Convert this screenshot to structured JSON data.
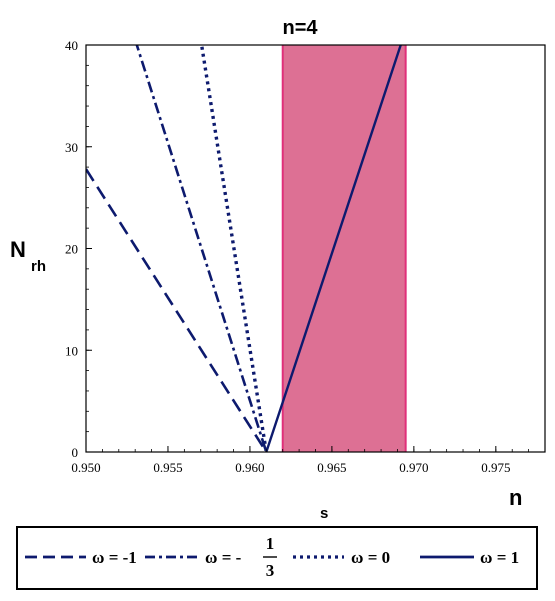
{
  "chart_data": {
    "type": "line",
    "title": "n=4",
    "xlabel": {
      "main": "n",
      "sub": "s"
    },
    "ylabel": {
      "main": "N",
      "sub": "rh"
    },
    "xlim": [
      0.95,
      0.978
    ],
    "ylim": [
      0,
      40
    ],
    "xticks": [
      "0.950",
      "0.955",
      "0.960",
      "0.965",
      "0.970",
      "0.975"
    ],
    "yticks": [
      "0",
      "10",
      "20",
      "30",
      "40"
    ],
    "grid": false,
    "legend_position": "bottom",
    "shaded_band": {
      "x": [
        0.962,
        0.9695
      ],
      "fill": "#dd7094",
      "edge": "#e0307a"
    },
    "line_color": "#0d1a6e",
    "series": [
      {
        "name": "ω = -1",
        "style": "dashed",
        "points": [
          [
            0.95,
            27.8
          ],
          [
            0.961,
            0
          ]
        ]
      },
      {
        "name": "ω = -1/3",
        "style": "dashdot",
        "points": [
          [
            0.953,
            40.5
          ],
          [
            0.961,
            0
          ]
        ]
      },
      {
        "name": "ω = 0",
        "style": "dotted",
        "points": [
          [
            0.957,
            40.5
          ],
          [
            0.961,
            0
          ]
        ]
      },
      {
        "name": "ω = 1",
        "style": "solid",
        "points": [
          [
            0.961,
            0
          ],
          [
            0.9693,
            40.5
          ]
        ]
      }
    ]
  },
  "legend": [
    {
      "symbol": "ω",
      "eq": "= -1"
    },
    {
      "symbol": "ω",
      "eq": "= -",
      "num": "1",
      "den": "3"
    },
    {
      "symbol": "ω",
      "eq": "= 0"
    },
    {
      "symbol": "ω",
      "eq": "= 1"
    }
  ]
}
